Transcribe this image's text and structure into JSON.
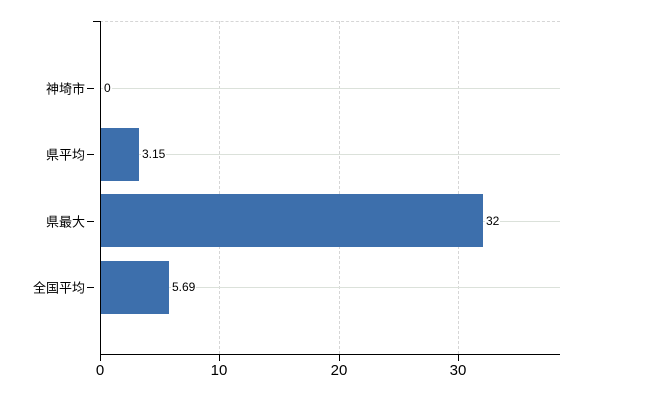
{
  "chart_data": {
    "type": "bar",
    "orientation": "horizontal",
    "title": "",
    "categories": [
      "神埼市",
      "県平均",
      "県最大",
      "全国平均"
    ],
    "values": [
      0,
      3.15,
      32,
      5.69
    ],
    "value_labels": [
      "0",
      "3.15",
      "32",
      "5.69"
    ],
    "xlabel": "",
    "ylabel": "",
    "xlim": [
      0,
      38.5
    ],
    "x_ticks": [
      0,
      10,
      20,
      30
    ],
    "x_tick_labels": [
      "0",
      "10",
      "20",
      "30"
    ],
    "grid": true,
    "legend": false,
    "colors": {
      "bar": "#3d6fac",
      "axis": "#000000",
      "h_gridline": "#dbe1da",
      "v_gridline": "#d6d6d6",
      "text": "#000000",
      "background": "#ffffff"
    }
  }
}
